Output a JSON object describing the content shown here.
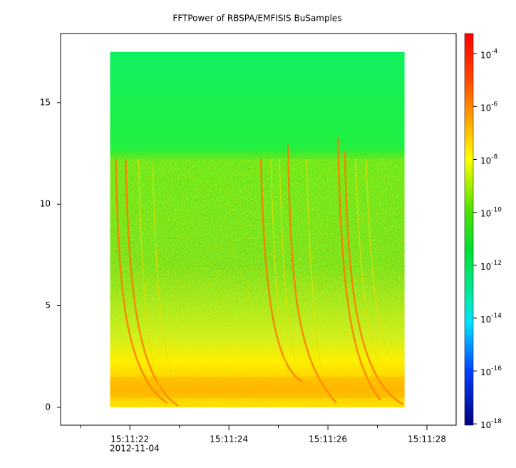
{
  "chart_data": {
    "type": "spectrogram",
    "title": "FFTPower of RBSPA/EMFISIS  BuSamples",
    "xlim": [
      20.6,
      28.59
    ],
    "xticks": [
      {
        "value": 22,
        "label": "15:11:22"
      },
      {
        "value": 24,
        "label": "15:11:24"
      },
      {
        "value": 26,
        "label": "15:11:26"
      },
      {
        "value": 28,
        "label": "15:11:28"
      }
    ],
    "xminorticks": [
      21,
      23,
      25,
      27
    ],
    "x_date": "2012-11-04",
    "ylim": [
      -0.88,
      18.4
    ],
    "yticks": [
      0,
      5,
      10,
      15
    ],
    "image_extent": {
      "x": [
        21.6,
        27.55
      ],
      "y": [
        0,
        17.5
      ]
    },
    "zlim": [
      8.9e-19,
      0.00058
    ],
    "zlog": true,
    "zticks": [
      {
        "value": 0.0001,
        "label": "10",
        "exponent": "-4"
      },
      {
        "value": 1e-06,
        "label": "10",
        "exponent": "-6"
      },
      {
        "value": 1e-08,
        "label": "10",
        "exponent": "-8"
      },
      {
        "value": 1e-10,
        "label": "10",
        "exponent": "-10"
      },
      {
        "value": 1e-12,
        "label": "10",
        "exponent": "-12"
      },
      {
        "value": 1e-14,
        "label": "10",
        "exponent": "-14"
      },
      {
        "value": 1e-16,
        "label": "10",
        "exponent": "-16"
      },
      {
        "value": 1e-18,
        "label": "10",
        "exponent": "-18"
      }
    ]
  }
}
